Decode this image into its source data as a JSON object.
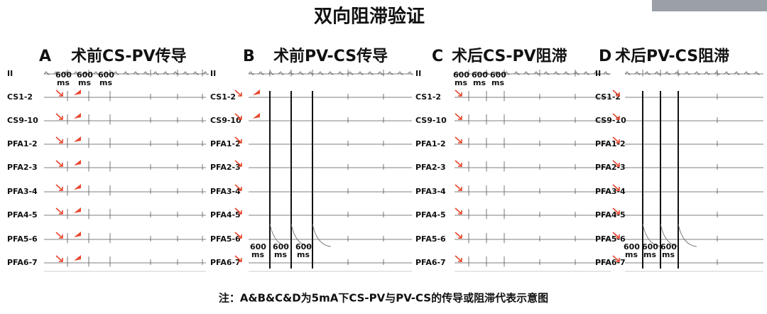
{
  "title": "双向阻滞验证",
  "panels": [
    {
      "letter": "A",
      "title": "术前CS-PV传导",
      "ms_value": "600",
      "ms_unit": "ms"
    },
    {
      "letter": "B",
      "title": "术前PV-CS传导",
      "ms_value": "600",
      "ms_unit": "ms"
    },
    {
      "letter": "C",
      "title": "术后CS-PV阻滞",
      "ms_value": "600",
      "ms_unit": "ms"
    },
    {
      "letter": "D",
      "title": "术后PV-CS阻滞",
      "ms_value": "600",
      "ms_unit": "ms"
    }
  ],
  "leads": [
    "II",
    "CS1-2",
    "CS9-10",
    "PFA1-2",
    "PFA2-3",
    "PFA3-4",
    "PFA4-5",
    "PFA5-6",
    "PFA6-7"
  ],
  "note": "注：A&B&C&D为5mA下CS-PV与PV-CS的传导或阻滞代表示意图"
}
